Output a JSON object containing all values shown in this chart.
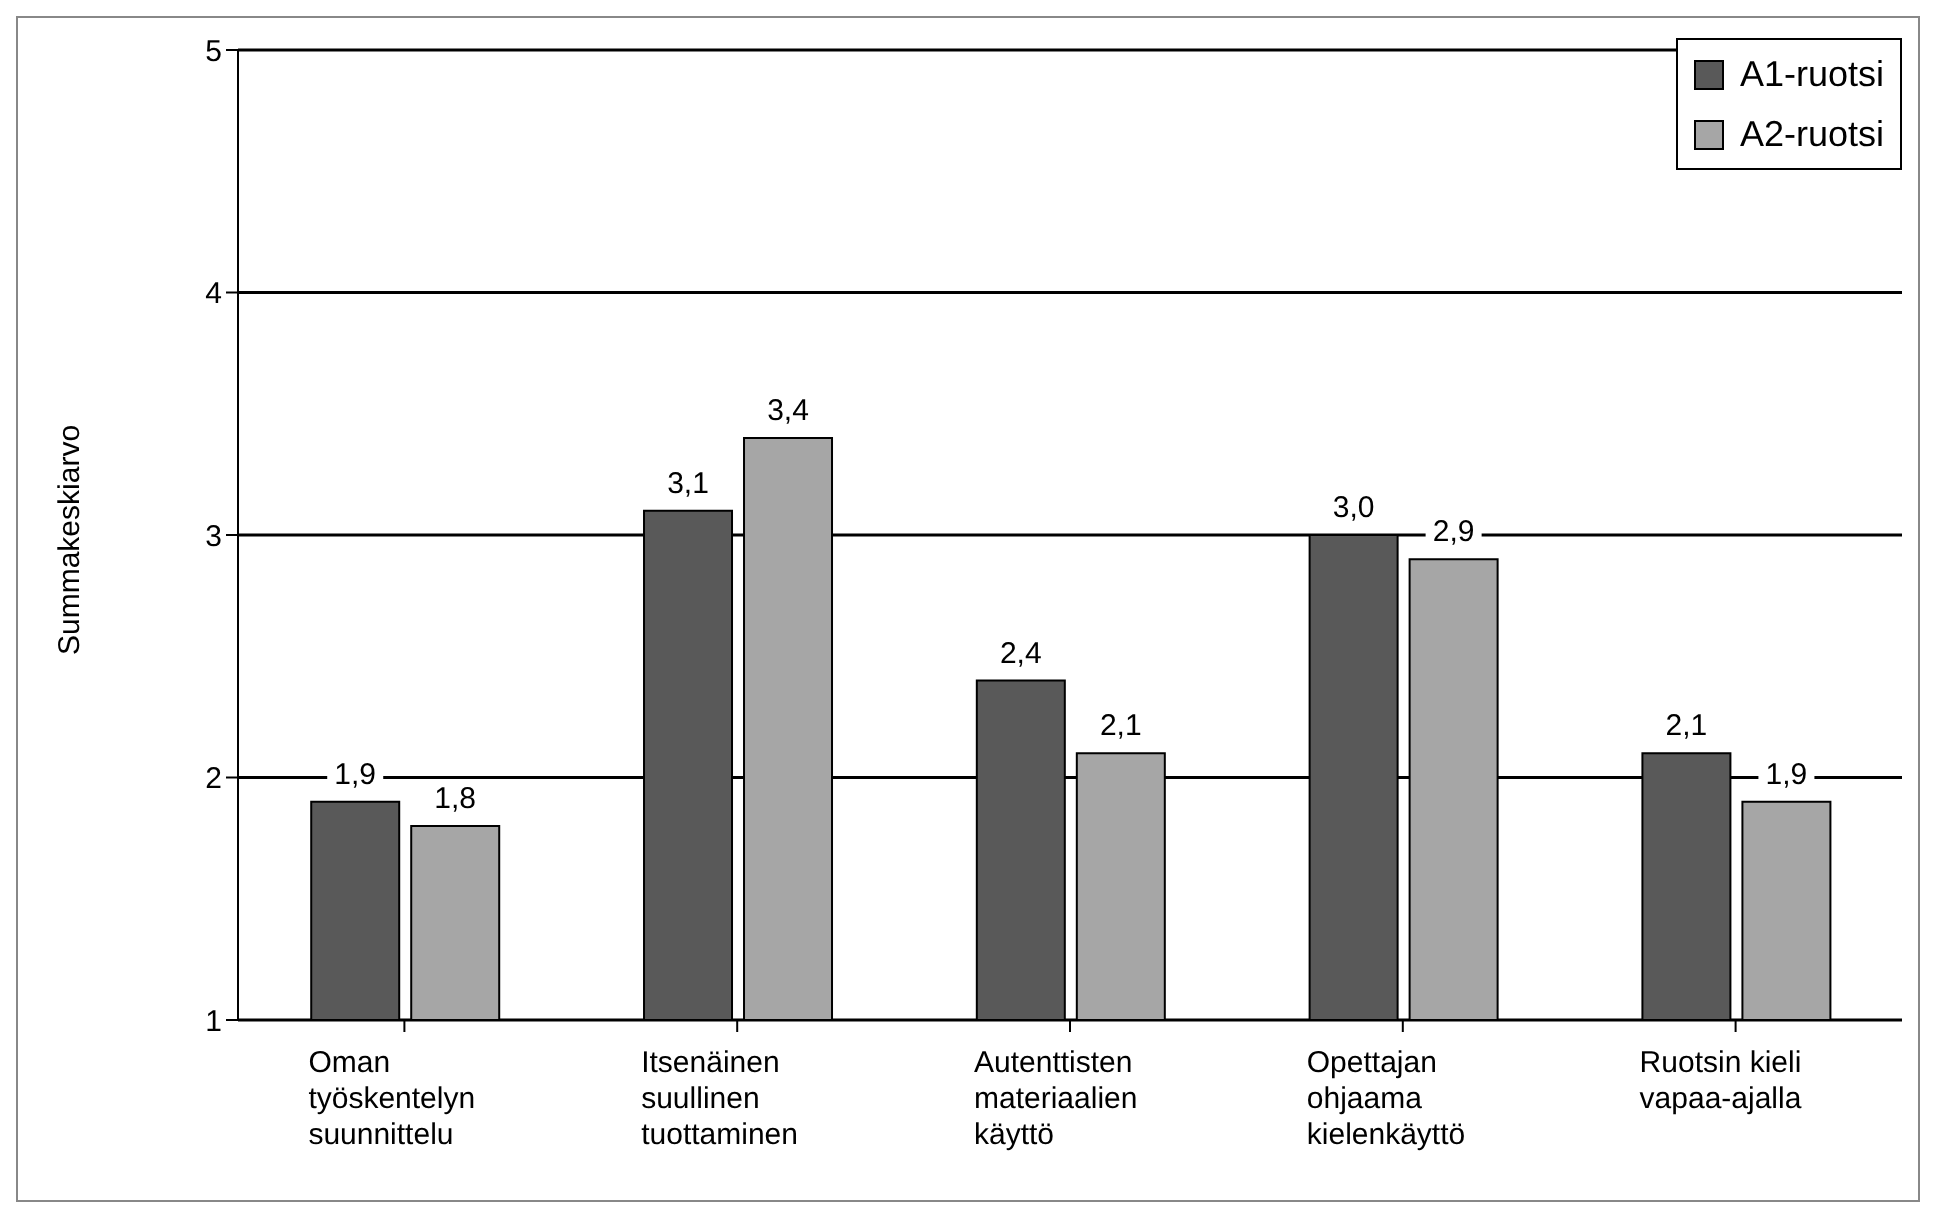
{
  "chart_data": {
    "type": "bar",
    "ylabel": "Summakeskiarvo",
    "categories": [
      "Oman työskentelyn suunnittelu",
      "Itsenäinen suullinen tuottaminen",
      "Autenttisten materiaalien käyttö",
      "Opettajan ohjaama kielenkäyttö",
      "Ruotsin kieli vapaa-ajalla"
    ],
    "series": [
      {
        "name": "A1-ruotsi",
        "color": "#595959",
        "values": [
          1.9,
          3.1,
          2.4,
          3.0,
          2.1
        ],
        "value_labels": [
          "1,9",
          "3,1",
          "2,4",
          "3,0",
          "2,1"
        ]
      },
      {
        "name": "A2-ruotsi",
        "color": "#a6a6a6",
        "values": [
          1.8,
          3.4,
          2.1,
          2.9,
          1.9
        ],
        "value_labels": [
          "1,8",
          "3,4",
          "2,1",
          "2,9",
          "1,9"
        ]
      }
    ],
    "ylim": [
      1,
      5
    ],
    "yticks": [
      1,
      2,
      3,
      4,
      5
    ],
    "grid": "y",
    "legend": "top right"
  }
}
